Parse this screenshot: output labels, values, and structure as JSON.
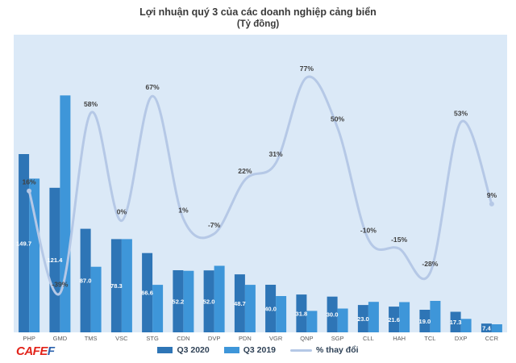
{
  "title": "Lợi nhuận quý 3 của các doanh nghiệp cảng biển",
  "subtitle": "(Tỷ đồng)",
  "logo": {
    "part1": "CAFE",
    "part2": "F"
  },
  "colors": {
    "bar_2020": "#2e75b6",
    "bar_2019": "#3e96d9",
    "line": "#b5c8e6",
    "plot_bg": "#dbe9f7",
    "bar_label": "#ffffff",
    "pct_label": "#404040",
    "category_label": "#595959",
    "title_text": "#3a3a3a",
    "legend_text": "#2e4156",
    "logo_red": "#e2231a",
    "logo_blue": "#2b62ad"
  },
  "legend": [
    {
      "label": "Q3 2020",
      "type": "bar",
      "color": "#2e75b6"
    },
    {
      "label": "Q3 2019",
      "type": "bar",
      "color": "#3e96d9"
    },
    {
      "label": "% thay đổi",
      "type": "line",
      "color": "#b5c8e6"
    }
  ],
  "chart_data": {
    "type": "combo-bar-line",
    "title": "Lợi nhuận quý 3 của các doanh nghiệp cảng biển",
    "unit": "Tỷ đồng",
    "categories": [
      "PHP",
      "GMD",
      "TMS",
      "VSC",
      "STG",
      "CDN",
      "DVP",
      "PDN",
      "VGR",
      "QNP",
      "SGP",
      "CLL",
      "HAH",
      "TCL",
      "DXP",
      "CCR"
    ],
    "series": [
      {
        "name": "Q3 2020",
        "type": "bar",
        "axis": "primary",
        "color": "#2e75b6",
        "labeled": true,
        "values": [
          149.7,
          121.4,
          87.0,
          78.3,
          66.6,
          52.2,
          52.0,
          48.7,
          40.0,
          31.8,
          30.0,
          23.0,
          21.6,
          19.0,
          17.3,
          7.4
        ]
      },
      {
        "name": "Q3 2019",
        "type": "bar",
        "axis": "primary",
        "color": "#3e96d9",
        "labeled": false,
        "estimated": true,
        "values": [
          129.1,
          199.0,
          55.1,
          78.3,
          39.9,
          51.7,
          55.9,
          39.9,
          30.5,
          18.0,
          20.0,
          25.6,
          25.4,
          26.4,
          11.3,
          6.8
        ]
      },
      {
        "name": "% thay đổi",
        "type": "line",
        "axis": "secondary",
        "color": "#b5c8e6",
        "labeled": true,
        "values": [
          16,
          -39,
          58,
          0,
          67,
          1,
          -7,
          22,
          31,
          77,
          50,
          -10,
          -15,
          -28,
          53,
          9
        ],
        "labels": [
          "16%",
          "-39%",
          "58%",
          "0%",
          "67%",
          "1%",
          "-7%",
          "22%",
          "31%",
          "77%",
          "50%",
          "-10%",
          "-15%",
          "-28%",
          "53%",
          "9%"
        ]
      }
    ],
    "primary_axis": {
      "min": 0,
      "max": 250,
      "visible": false
    },
    "secondary_axis": {
      "min": -60,
      "max": 100,
      "visible": false
    },
    "grid": false,
    "legend_position": "bottom"
  }
}
